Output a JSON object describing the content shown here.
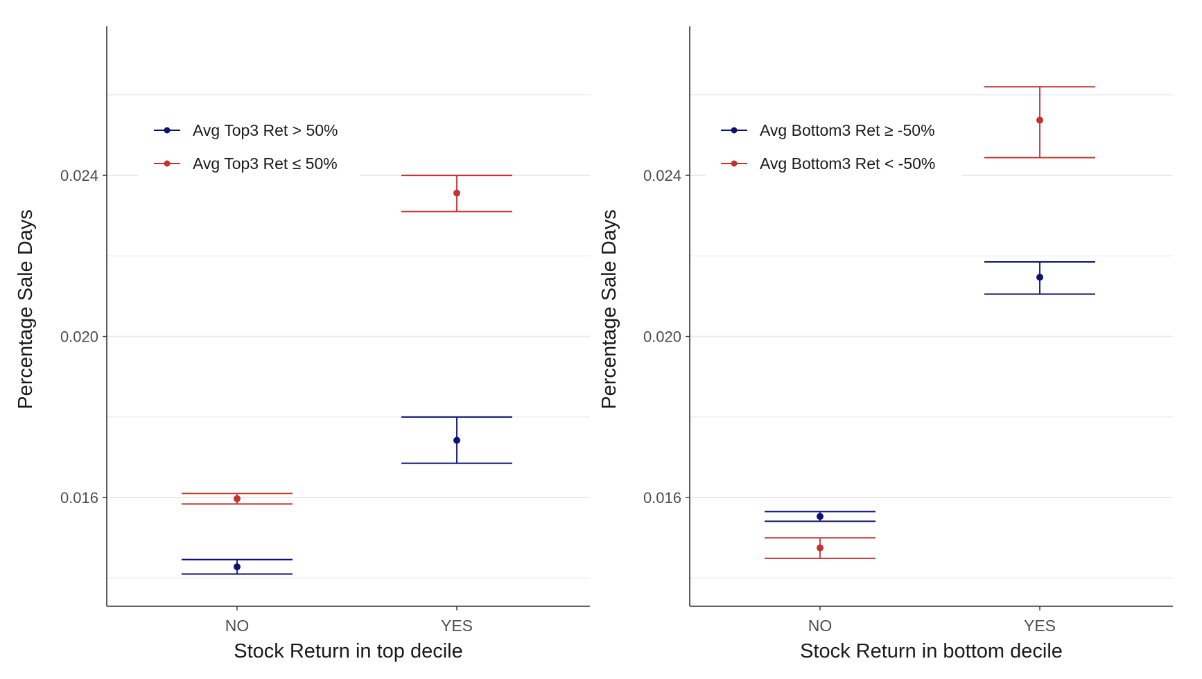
{
  "chart_data": [
    {
      "type": "errorbar",
      "xlabel": "Stock Return in top decile",
      "ylabel": "Percentage Sale Days",
      "categories": [
        "NO",
        "YES"
      ],
      "ylim": [
        0.0133,
        0.0277
      ],
      "yticks": [
        0.016,
        0.02,
        0.024
      ],
      "ytick_labels": [
        "0.016",
        "0.020",
        "0.024"
      ],
      "minor_gridlines": [
        0.014,
        0.018,
        0.022,
        0.026
      ],
      "legend_position": "top-left",
      "series": [
        {
          "name": "Avg Top3 Ret > 50%",
          "color": "#0d1170",
          "points": [
            {
              "x": "NO",
              "y": 0.01428,
              "ymin": 0.0141,
              "ymax": 0.01446
            },
            {
              "x": "YES",
              "y": 0.01742,
              "ymin": 0.01685,
              "ymax": 0.018
            }
          ]
        },
        {
          "name": "Avg Top3 Ret ≤ 50%",
          "color": "#c23232",
          "points": [
            {
              "x": "NO",
              "y": 0.01597,
              "ymin": 0.01584,
              "ymax": 0.0161
            },
            {
              "x": "YES",
              "y": 0.02356,
              "ymin": 0.0231,
              "ymax": 0.024
            }
          ]
        }
      ]
    },
    {
      "type": "errorbar",
      "xlabel": "Stock Return in bottom decile",
      "ylabel": "Percentage Sale Days",
      "categories": [
        "NO",
        "YES"
      ],
      "ylim": [
        0.0133,
        0.0277
      ],
      "yticks": [
        0.016,
        0.02,
        0.024
      ],
      "ytick_labels": [
        "0.016",
        "0.020",
        "0.024"
      ],
      "minor_gridlines": [
        0.014,
        0.018,
        0.022,
        0.026
      ],
      "legend_position": "top-left",
      "series": [
        {
          "name": "Avg Bottom3 Ret ≥ -50%",
          "color": "#0d1170",
          "points": [
            {
              "x": "NO",
              "y": 0.01553,
              "ymin": 0.01541,
              "ymax": 0.01565
            },
            {
              "x": "YES",
              "y": 0.02147,
              "ymin": 0.02105,
              "ymax": 0.02185
            }
          ]
        },
        {
          "name": "Avg Bottom3 Ret < -50%",
          "color": "#c23232",
          "points": [
            {
              "x": "NO",
              "y": 0.01475,
              "ymin": 0.01449,
              "ymax": 0.015
            },
            {
              "x": "YES",
              "y": 0.02537,
              "ymin": 0.02444,
              "ymax": 0.0262
            }
          ]
        }
      ]
    }
  ],
  "colors": {
    "axis": "#333333",
    "grid": "#ebebeb",
    "tick_text": "#4d4d4d",
    "title_text": "#1a1a1a"
  }
}
